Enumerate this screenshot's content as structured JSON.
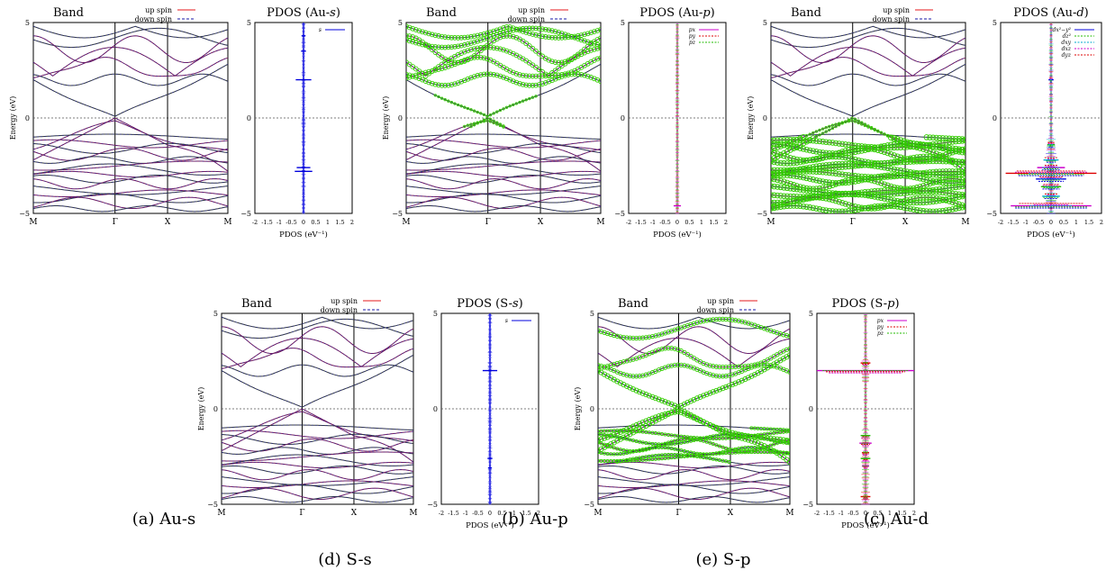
{
  "chart_data": [
    {
      "id": "a",
      "type": "line",
      "caption": "(a) Au-s",
      "band": {
        "title": "Band",
        "ylabel": "Energy (eV)",
        "ylim": [
          -5,
          5
        ],
        "yticks": [
          "5",
          "0",
          "−5"
        ],
        "kpoints": [
          "M",
          "Γ",
          "X",
          "M"
        ],
        "legend": [
          "up spin",
          "down spin"
        ],
        "orbital_weight": "none"
      },
      "pdos": {
        "title_prefix": "PDOS (Au-",
        "title_orb": "s",
        "title_suffix": ")",
        "xlabel": "PDOS (eV⁻¹)",
        "xlim": [
          -2,
          2
        ],
        "xticks": [
          "-2",
          "-1.5",
          "-1",
          "-0.5",
          "0",
          "0.5",
          "1",
          "1.5",
          "2"
        ],
        "ylim": [
          -5,
          5
        ],
        "legend": [
          "s"
        ],
        "mode": "s",
        "peaks": [
          {
            "E": 2.0,
            "w": 0.32
          },
          {
            "E": -2.6,
            "w": 0.28
          },
          {
            "E": -2.8,
            "w": 0.36
          },
          {
            "E": 4.3,
            "w": 0.08
          },
          {
            "E": 3.5,
            "w": 0.1
          }
        ]
      }
    },
    {
      "id": "b",
      "type": "line",
      "caption": "(b) Au-p",
      "band": {
        "title": "Band",
        "ylabel": "Energy (eV)",
        "ylim": [
          -5,
          5
        ],
        "yticks": [
          "5",
          "0",
          "−5"
        ],
        "kpoints": [
          "M",
          "Γ",
          "X",
          "M"
        ],
        "legend": [
          "up spin",
          "down spin"
        ],
        "orbital_weight": "conduction"
      },
      "pdos": {
        "title_prefix": "PDOS (Au-",
        "title_orb": "p",
        "title_suffix": ")",
        "xlabel": "PDOS (eV⁻¹)",
        "xlim": [
          -2,
          2
        ],
        "xticks": [
          "-2",
          "-1.5",
          "-1",
          "-0.5",
          "0",
          "0.5",
          "1",
          "1.5",
          "2"
        ],
        "ylim": [
          -5,
          5
        ],
        "legend": [
          "px",
          "py",
          "pz"
        ],
        "mode": "p_thin",
        "peaks": [
          {
            "E": -4.6,
            "w": 0.15
          }
        ]
      }
    },
    {
      "id": "c",
      "type": "line",
      "caption": "(c) Au-d",
      "band": {
        "title": "Band",
        "ylabel": "Energy (eV)",
        "ylim": [
          -5,
          5
        ],
        "yticks": [
          "5",
          "0",
          "−5"
        ],
        "kpoints": [
          "M",
          "Γ",
          "X",
          "M"
        ],
        "legend": [
          "up spin",
          "down spin"
        ],
        "orbital_weight": "valence"
      },
      "pdos": {
        "title_prefix": "PDOS (Au-",
        "title_orb": "d",
        "title_suffix": ")",
        "xlabel": "PDOS (eV⁻¹)",
        "xlim": [
          -2,
          2
        ],
        "xticks": [
          "-2",
          "-1.5",
          "-1",
          "-0.5",
          "0",
          "0.5",
          "1",
          "1.5",
          "2"
        ],
        "ylim": [
          -5,
          5
        ],
        "legend": [
          "dx²−y²",
          "dz²",
          "dxy",
          "dxz",
          "dyz"
        ],
        "mode": "d",
        "peaks": [
          {
            "E": 2.0,
            "w": 0.1
          },
          {
            "E": -1.4,
            "w": 0.15
          },
          {
            "E": -2.2,
            "w": 0.3
          },
          {
            "E": -2.6,
            "w": 0.55
          },
          {
            "E": -2.9,
            "w": 1.8
          },
          {
            "E": -3.2,
            "w": 0.6
          },
          {
            "E": -3.6,
            "w": 0.4
          },
          {
            "E": -4.1,
            "w": 0.35
          },
          {
            "E": -4.6,
            "w": 1.6
          }
        ]
      }
    },
    {
      "id": "d",
      "type": "line",
      "caption": "(d) S-s",
      "band": {
        "title": "Band",
        "ylabel": "Energy (eV)",
        "ylim": [
          -5,
          5
        ],
        "yticks": [
          "5",
          "0",
          "−5"
        ],
        "kpoints": [
          "M",
          "Γ",
          "X",
          "M"
        ],
        "legend": [
          "up spin",
          "down spin"
        ],
        "orbital_weight": "none"
      },
      "pdos": {
        "title_prefix": "PDOS (S-",
        "title_orb": "s",
        "title_suffix": ")",
        "xlabel": "PDOS (eV⁻¹)",
        "xlim": [
          -2,
          2
        ],
        "xticks": [
          "-2",
          "-1.5",
          "-1",
          "-0.5",
          "0",
          "0.5",
          "1",
          "1.5",
          "2"
        ],
        "ylim": [
          -5,
          5
        ],
        "legend": [
          "s"
        ],
        "mode": "s",
        "peaks": [
          {
            "E": 2.0,
            "w": 0.3
          },
          {
            "E": -2.6,
            "w": 0.1
          },
          {
            "E": -3.1,
            "w": 0.08
          }
        ]
      }
    },
    {
      "id": "e",
      "type": "line",
      "caption": "(e) S-p",
      "band": {
        "title": "Band",
        "ylabel": "Energy (eV)",
        "ylim": [
          -5,
          5
        ],
        "yticks": [
          "5",
          "0",
          "−5"
        ],
        "kpoints": [
          "M",
          "Γ",
          "X",
          "M"
        ],
        "legend": [
          "up spin",
          "down spin"
        ],
        "orbital_weight": "mixed"
      },
      "pdos": {
        "title_prefix": "PDOS (S-",
        "title_orb": "p",
        "title_suffix": ")",
        "xlabel": "PDOS (eV⁻¹)",
        "xlim": [
          -2,
          2
        ],
        "xticks": [
          "-2",
          "-1.5",
          "-1",
          "-0.5",
          "0",
          "0.5",
          "1",
          "1.5",
          "2"
        ],
        "ylim": [
          -5,
          5
        ],
        "legend": [
          "px",
          "py",
          "pz"
        ],
        "mode": "p",
        "peaks": [
          {
            "E": 2.0,
            "w": 2.0
          },
          {
            "E": 2.4,
            "w": 0.2
          },
          {
            "E": -1.4,
            "w": 0.2
          },
          {
            "E": -1.8,
            "w": 0.25
          },
          {
            "E": -2.3,
            "w": 0.15
          },
          {
            "E": -2.6,
            "w": 0.2
          },
          {
            "E": -3.0,
            "w": 0.15
          },
          {
            "E": -4.6,
            "w": 0.2
          }
        ]
      }
    }
  ],
  "colors": {
    "up": "#e41a1c",
    "down": "#1a1aaa",
    "weight": "#33cc00",
    "pdos_s": "#0000dd",
    "px": "#cc00cc",
    "py": "#dd0000",
    "pz": "#22bb00",
    "dxy": "#00aacc",
    "dxz": "#ff7700"
  }
}
